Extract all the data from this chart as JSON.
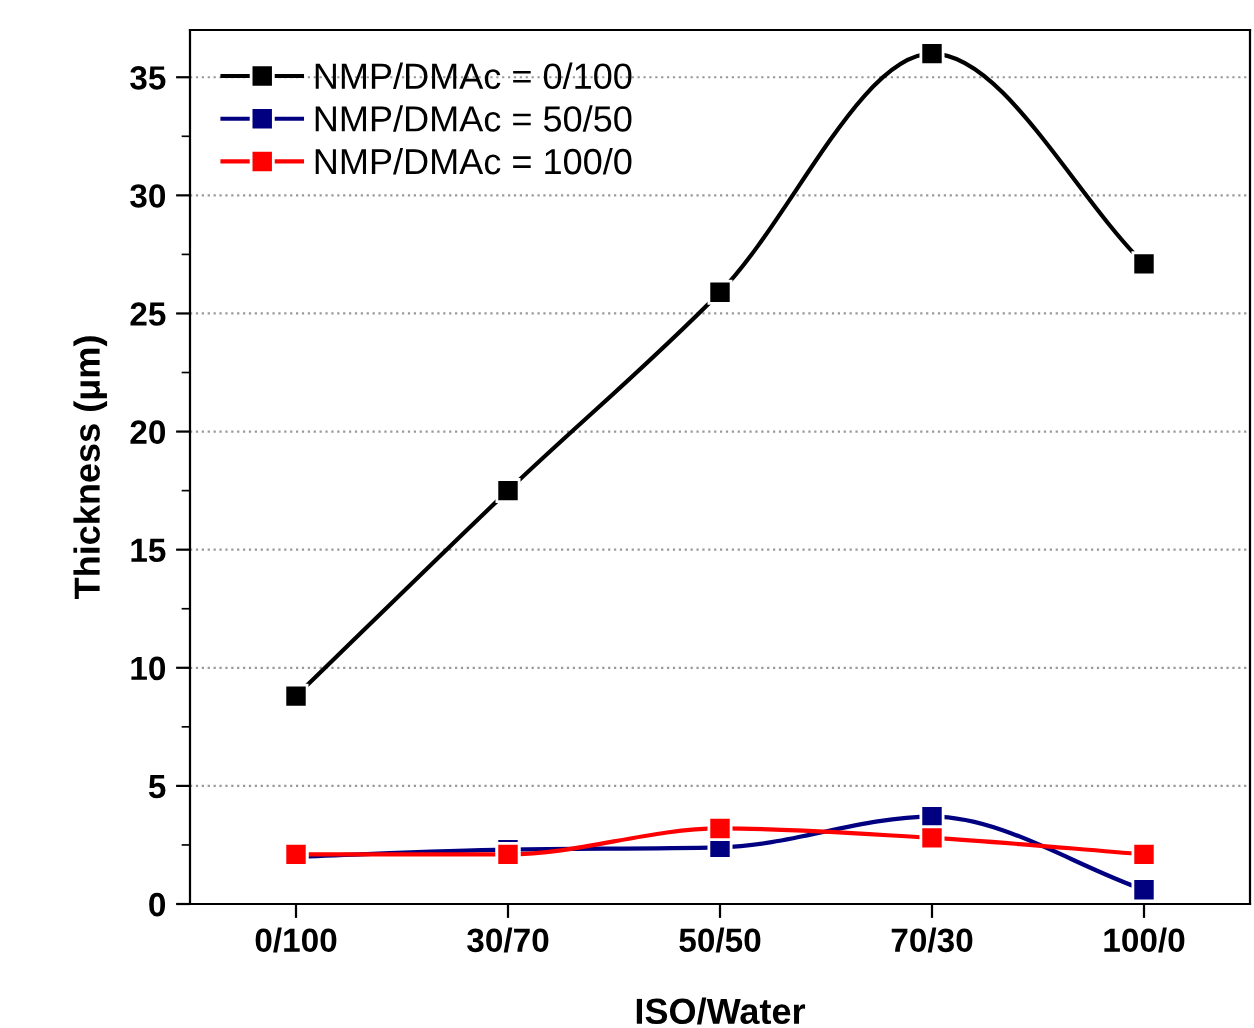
{
  "chart_data": {
    "type": "line",
    "xlabel": "ISO/Water",
    "ylabel": "Thickness (μm)",
    "categories": [
      "0/100",
      "30/70",
      "50/50",
      "70/30",
      "100/0"
    ],
    "series": [
      {
        "name": "NMP/DMAc = 0/100",
        "color": "#000000",
        "values": [
          8.8,
          17.5,
          25.9,
          36.0,
          27.1
        ]
      },
      {
        "name": "NMP/DMAc = 50/50",
        "color": "#000080",
        "values": [
          2.0,
          2.3,
          2.4,
          3.7,
          0.6
        ]
      },
      {
        "name": "NMP/DMAc = 100/0",
        "color": "#ff0000",
        "values": [
          2.1,
          2.1,
          3.2,
          2.8,
          2.1
        ]
      }
    ],
    "ylim": [
      0,
      37
    ],
    "yticks": [
      0,
      5,
      10,
      15,
      20,
      25,
      30,
      35
    ],
    "grid": "y",
    "legend": "top left",
    "marker": "square",
    "line_style": "solid"
  }
}
